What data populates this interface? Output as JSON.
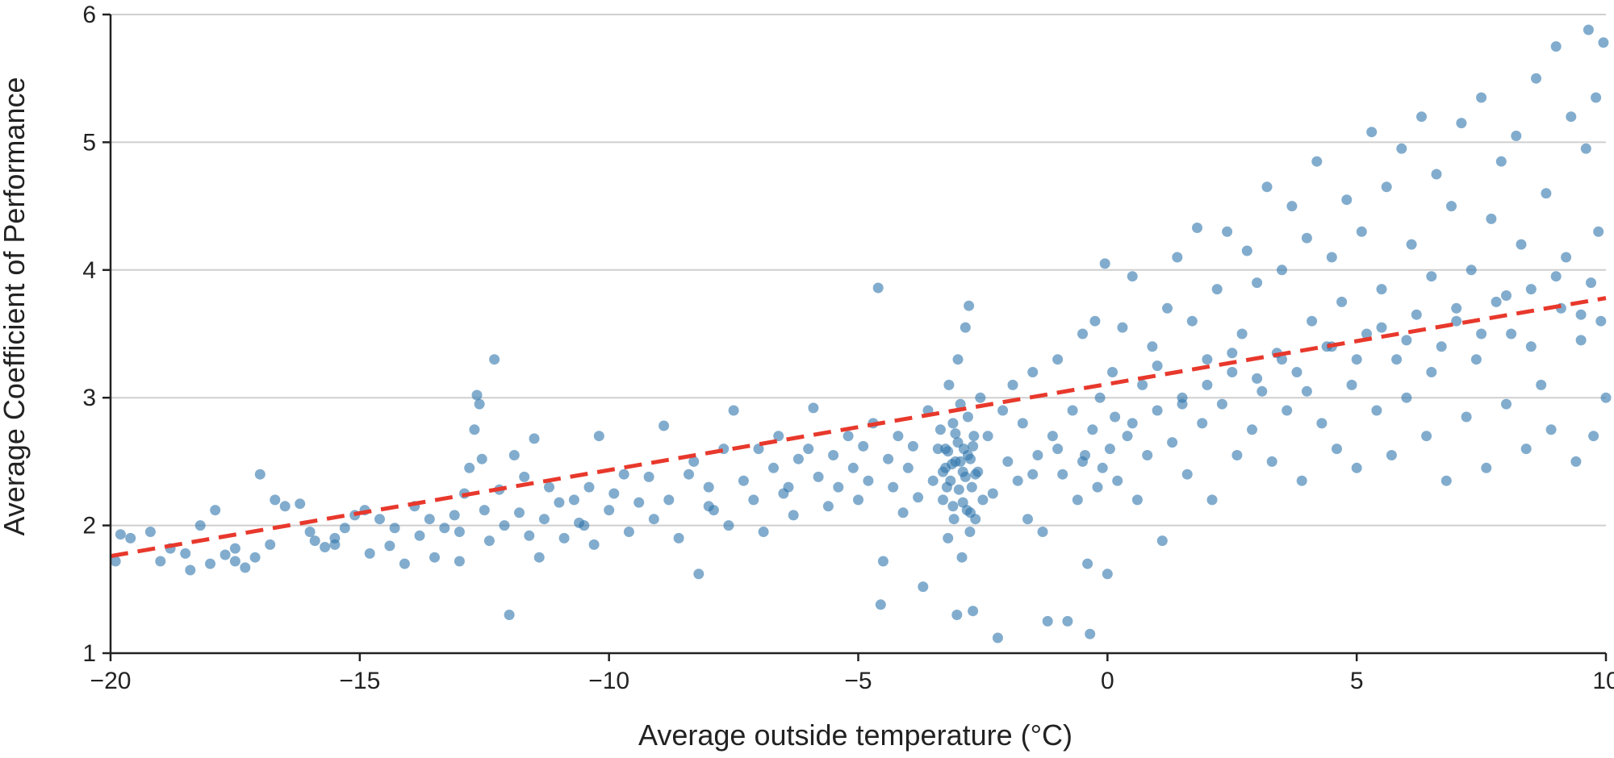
{
  "chart_data": {
    "type": "scatter",
    "title": "",
    "xlabel": "Average outside temperature (°C)",
    "ylabel": "Average Coefficient of Performance",
    "xlim": [
      -20,
      10
    ],
    "ylim": [
      1,
      6
    ],
    "xticks": [
      {
        "value": -20,
        "label": "−20"
      },
      {
        "value": -15,
        "label": "−15"
      },
      {
        "value": -10,
        "label": "−10"
      },
      {
        "value": -5,
        "label": "−5"
      },
      {
        "value": 0,
        "label": "0"
      },
      {
        "value": 5,
        "label": "5"
      },
      {
        "value": 10,
        "label": "10"
      }
    ],
    "yticks": [
      {
        "value": 1,
        "label": "1"
      },
      {
        "value": 2,
        "label": "2"
      },
      {
        "value": 3,
        "label": "3"
      },
      {
        "value": 4,
        "label": "4"
      },
      {
        "value": 5,
        "label": "5"
      },
      {
        "value": 6,
        "label": "6"
      }
    ],
    "grid": "horizontal",
    "legend": "none",
    "colors": {
      "points": "#2e75ab",
      "trend": "#e8382c",
      "grid": "#cfcfcf",
      "axis": "#222222"
    },
    "trend_line": {
      "style": "dashed",
      "points": [
        [
          -20,
          1.76
        ],
        [
          10,
          3.78
        ]
      ]
    },
    "points": [
      [
        -19.9,
        1.72
      ],
      [
        -19.8,
        1.93
      ],
      [
        -19.6,
        1.9
      ],
      [
        -19.2,
        1.95
      ],
      [
        -19.0,
        1.72
      ],
      [
        -18.8,
        1.82
      ],
      [
        -18.5,
        1.78
      ],
      [
        -18.4,
        1.65
      ],
      [
        -18.2,
        2.0
      ],
      [
        -18.0,
        1.7
      ],
      [
        -17.9,
        2.12
      ],
      [
        -17.7,
        1.77
      ],
      [
        -17.5,
        1.72
      ],
      [
        -17.3,
        1.67
      ],
      [
        -17.1,
        1.75
      ],
      [
        -17.0,
        2.4
      ],
      [
        -16.8,
        1.85
      ],
      [
        -16.7,
        2.2
      ],
      [
        -16.5,
        2.15
      ],
      [
        -16.2,
        2.17
      ],
      [
        -16.0,
        1.95
      ],
      [
        -15.9,
        1.88
      ],
      [
        -15.7,
        1.83
      ],
      [
        -15.5,
        1.9
      ],
      [
        -15.3,
        1.98
      ],
      [
        -15.1,
        2.08
      ],
      [
        -14.9,
        2.12
      ],
      [
        -14.8,
        1.78
      ],
      [
        -14.6,
        2.05
      ],
      [
        -14.4,
        1.84
      ],
      [
        -14.3,
        1.98
      ],
      [
        -14.1,
        1.7
      ],
      [
        -13.9,
        2.15
      ],
      [
        -13.8,
        1.92
      ],
      [
        -13.6,
        2.05
      ],
      [
        -13.5,
        1.75
      ],
      [
        -13.3,
        1.98
      ],
      [
        -13.1,
        2.08
      ],
      [
        -13.0,
        1.72
      ],
      [
        -12.9,
        2.25
      ],
      [
        -12.8,
        2.45
      ],
      [
        -12.7,
        2.75
      ],
      [
        -12.65,
        3.02
      ],
      [
        -12.6,
        2.95
      ],
      [
        -12.55,
        2.52
      ],
      [
        -12.5,
        2.12
      ],
      [
        -12.4,
        1.88
      ],
      [
        -12.3,
        3.3
      ],
      [
        -12.2,
        2.28
      ],
      [
        -12.1,
        2.0
      ],
      [
        -12.0,
        1.3
      ],
      [
        -11.9,
        2.55
      ],
      [
        -11.8,
        2.1
      ],
      [
        -11.7,
        2.38
      ],
      [
        -11.6,
        1.92
      ],
      [
        -11.5,
        2.68
      ],
      [
        -11.4,
        1.75
      ],
      [
        -11.3,
        2.05
      ],
      [
        -11.2,
        2.3
      ],
      [
        -11.0,
        2.18
      ],
      [
        -10.9,
        1.9
      ],
      [
        -10.7,
        2.2
      ],
      [
        -10.6,
        2.02
      ],
      [
        -10.4,
        2.3
      ],
      [
        -10.3,
        1.85
      ],
      [
        -10.2,
        2.7
      ],
      [
        -10.0,
        2.12
      ],
      [
        -9.9,
        2.25
      ],
      [
        -9.7,
        2.4
      ],
      [
        -9.6,
        1.95
      ],
      [
        -9.4,
        2.18
      ],
      [
        -9.2,
        2.38
      ],
      [
        -9.1,
        2.05
      ],
      [
        -8.9,
        2.78
      ],
      [
        -8.8,
        2.2
      ],
      [
        -8.6,
        1.9
      ],
      [
        -8.4,
        2.4
      ],
      [
        -8.3,
        2.5
      ],
      [
        -8.2,
        1.62
      ],
      [
        -8.0,
        2.3
      ],
      [
        -7.9,
        2.12
      ],
      [
        -7.7,
        2.6
      ],
      [
        -7.6,
        2.0
      ],
      [
        -7.5,
        2.9
      ],
      [
        -7.3,
        2.35
      ],
      [
        -7.1,
        2.2
      ],
      [
        -7.0,
        2.6
      ],
      [
        -6.9,
        1.95
      ],
      [
        -6.7,
        2.45
      ],
      [
        -6.6,
        2.7
      ],
      [
        -6.4,
        2.3
      ],
      [
        -6.3,
        2.08
      ],
      [
        -6.2,
        2.52
      ],
      [
        -6.0,
        2.6
      ],
      [
        -5.9,
        2.92
      ],
      [
        -5.8,
        2.38
      ],
      [
        -5.6,
        2.15
      ],
      [
        -5.5,
        2.55
      ],
      [
        -5.4,
        2.3
      ],
      [
        -5.2,
        2.7
      ],
      [
        -5.1,
        2.45
      ],
      [
        -5.0,
        2.2
      ],
      [
        -4.9,
        2.62
      ],
      [
        -4.8,
        2.35
      ],
      [
        -4.7,
        2.8
      ],
      [
        -4.6,
        3.86
      ],
      [
        -4.55,
        1.38
      ],
      [
        -4.5,
        1.72
      ],
      [
        -4.4,
        2.52
      ],
      [
        -4.3,
        2.3
      ],
      [
        -4.2,
        2.7
      ],
      [
        -4.1,
        2.1
      ],
      [
        -4.0,
        2.45
      ],
      [
        -3.9,
        2.62
      ],
      [
        -3.8,
        2.22
      ],
      [
        -3.7,
        1.52
      ],
      [
        -3.6,
        2.9
      ],
      [
        -3.5,
        2.35
      ],
      [
        -3.4,
        2.6
      ],
      [
        -3.35,
        2.75
      ],
      [
        -3.3,
        2.2
      ],
      [
        -3.25,
        2.45
      ],
      [
        -3.2,
        1.9
      ],
      [
        -3.2,
        2.58
      ],
      [
        -3.18,
        3.1
      ],
      [
        -3.15,
        2.35
      ],
      [
        -3.1,
        2.8
      ],
      [
        -3.08,
        2.05
      ],
      [
        -3.05,
        2.5
      ],
      [
        -3.02,
        1.3
      ],
      [
        -3.0,
        2.65
      ],
      [
        -3.0,
        3.3
      ],
      [
        -2.98,
        2.28
      ],
      [
        -2.95,
        2.95
      ],
      [
        -2.92,
        1.75
      ],
      [
        -2.9,
        2.42
      ],
      [
        -2.88,
        2.6
      ],
      [
        -2.85,
        3.55
      ],
      [
        -2.82,
        2.12
      ],
      [
        -2.8,
        2.85
      ],
      [
        -2.78,
        3.72
      ],
      [
        -2.76,
        1.95
      ],
      [
        -2.75,
        2.52
      ],
      [
        -2.72,
        2.3
      ],
      [
        -2.7,
        1.33
      ],
      [
        -2.68,
        2.7
      ],
      [
        -2.65,
        2.05
      ],
      [
        -2.6,
        2.42
      ],
      [
        -2.55,
        3.0
      ],
      [
        -2.5,
        2.2
      ],
      [
        -3.3,
        2.42
      ],
      [
        -3.25,
        2.6
      ],
      [
        -3.22,
        2.3
      ],
      [
        -3.12,
        2.48
      ],
      [
        -3.1,
        2.15
      ],
      [
        -3.05,
        2.72
      ],
      [
        -2.95,
        2.5
      ],
      [
        -2.9,
        2.18
      ],
      [
        -2.85,
        2.38
      ],
      [
        -2.8,
        2.55
      ],
      [
        -2.75,
        2.1
      ],
      [
        -2.7,
        2.62
      ],
      [
        -2.65,
        2.4
      ],
      [
        -2.4,
        2.7
      ],
      [
        -2.3,
        2.25
      ],
      [
        -2.2,
        1.12
      ],
      [
        -2.1,
        2.9
      ],
      [
        -2.0,
        2.5
      ],
      [
        -1.9,
        3.1
      ],
      [
        -1.8,
        2.35
      ],
      [
        -1.7,
        2.8
      ],
      [
        -1.6,
        2.05
      ],
      [
        -1.5,
        3.2
      ],
      [
        -1.4,
        2.55
      ],
      [
        -1.3,
        1.95
      ],
      [
        -1.2,
        1.25
      ],
      [
        -1.1,
        2.7
      ],
      [
        -1.0,
        3.3
      ],
      [
        -0.9,
        2.4
      ],
      [
        -0.8,
        1.25
      ],
      [
        -0.7,
        2.9
      ],
      [
        -0.6,
        2.2
      ],
      [
        -0.5,
        3.5
      ],
      [
        -0.45,
        2.55
      ],
      [
        -0.4,
        1.7
      ],
      [
        -0.35,
        1.15
      ],
      [
        -0.3,
        2.75
      ],
      [
        -0.25,
        3.6
      ],
      [
        -0.2,
        2.3
      ],
      [
        -0.15,
        3.0
      ],
      [
        -0.1,
        2.45
      ],
      [
        -0.05,
        4.05
      ],
      [
        0.0,
        1.62
      ],
      [
        0.05,
        2.6
      ],
      [
        0.1,
        3.2
      ],
      [
        0.15,
        2.85
      ],
      [
        0.2,
        2.35
      ],
      [
        0.3,
        3.55
      ],
      [
        0.4,
        2.7
      ],
      [
        0.5,
        3.95
      ],
      [
        0.6,
        2.2
      ],
      [
        0.7,
        3.1
      ],
      [
        0.8,
        2.55
      ],
      [
        0.9,
        3.4
      ],
      [
        1.0,
        2.9
      ],
      [
        1.1,
        1.88
      ],
      [
        1.2,
        3.7
      ],
      [
        1.3,
        2.65
      ],
      [
        1.4,
        4.1
      ],
      [
        1.5,
        3.0
      ],
      [
        1.6,
        2.4
      ],
      [
        1.7,
        3.6
      ],
      [
        1.8,
        4.33
      ],
      [
        1.9,
        2.8
      ],
      [
        2.0,
        3.3
      ],
      [
        2.1,
        2.2
      ],
      [
        2.2,
        3.85
      ],
      [
        2.3,
        2.95
      ],
      [
        2.4,
        4.3
      ],
      [
        2.5,
        3.2
      ],
      [
        2.6,
        2.55
      ],
      [
        2.7,
        3.5
      ],
      [
        2.8,
        4.15
      ],
      [
        2.9,
        2.75
      ],
      [
        3.0,
        3.9
      ],
      [
        3.1,
        3.05
      ],
      [
        3.2,
        4.65
      ],
      [
        3.3,
        2.5
      ],
      [
        3.4,
        3.35
      ],
      [
        3.5,
        4.0
      ],
      [
        3.6,
        2.9
      ],
      [
        3.7,
        4.5
      ],
      [
        3.8,
        3.2
      ],
      [
        3.9,
        2.35
      ],
      [
        4.0,
        4.25
      ],
      [
        4.1,
        3.6
      ],
      [
        4.2,
        4.85
      ],
      [
        4.3,
        2.8
      ],
      [
        4.4,
        3.4
      ],
      [
        4.5,
        4.1
      ],
      [
        4.6,
        2.6
      ],
      [
        4.7,
        3.75
      ],
      [
        4.8,
        4.55
      ],
      [
        4.9,
        3.1
      ],
      [
        5.0,
        2.45
      ],
      [
        5.1,
        4.3
      ],
      [
        5.2,
        3.5
      ],
      [
        5.3,
        5.08
      ],
      [
        5.4,
        2.9
      ],
      [
        5.5,
        3.85
      ],
      [
        5.6,
        4.65
      ],
      [
        5.7,
        2.55
      ],
      [
        5.8,
        3.3
      ],
      [
        5.9,
        4.95
      ],
      [
        6.0,
        3.0
      ],
      [
        6.1,
        4.2
      ],
      [
        6.2,
        3.65
      ],
      [
        6.3,
        5.2
      ],
      [
        6.4,
        2.7
      ],
      [
        6.5,
        3.95
      ],
      [
        6.6,
        4.75
      ],
      [
        6.7,
        3.4
      ],
      [
        6.8,
        2.35
      ],
      [
        6.9,
        4.5
      ],
      [
        7.0,
        3.6
      ],
      [
        7.1,
        5.15
      ],
      [
        7.2,
        2.85
      ],
      [
        7.3,
        4.0
      ],
      [
        7.4,
        3.3
      ],
      [
        7.5,
        5.35
      ],
      [
        7.6,
        2.45
      ],
      [
        7.7,
        4.4
      ],
      [
        7.8,
        3.75
      ],
      [
        7.9,
        4.85
      ],
      [
        8.0,
        2.95
      ],
      [
        8.1,
        3.5
      ],
      [
        8.2,
        5.05
      ],
      [
        8.3,
        4.2
      ],
      [
        8.4,
        2.6
      ],
      [
        8.5,
        3.85
      ],
      [
        8.6,
        5.5
      ],
      [
        8.7,
        3.1
      ],
      [
        8.8,
        4.6
      ],
      [
        8.9,
        2.75
      ],
      [
        9.0,
        5.75
      ],
      [
        9.1,
        3.7
      ],
      [
        9.2,
        4.1
      ],
      [
        9.3,
        5.2
      ],
      [
        9.4,
        2.5
      ],
      [
        9.5,
        3.45
      ],
      [
        9.6,
        4.95
      ],
      [
        9.65,
        5.88
      ],
      [
        9.7,
        3.9
      ],
      [
        9.75,
        2.7
      ],
      [
        9.8,
        5.35
      ],
      [
        9.85,
        4.3
      ],
      [
        9.9,
        3.6
      ],
      [
        9.95,
        5.78
      ],
      [
        10.0,
        3.0
      ],
      [
        1.0,
        3.25
      ],
      [
        1.5,
        2.95
      ],
      [
        2.0,
        3.1
      ],
      [
        2.5,
        3.35
      ],
      [
        3.0,
        3.15
      ],
      [
        3.5,
        3.3
      ],
      [
        4.0,
        3.05
      ],
      [
        4.5,
        3.4
      ],
      [
        5.0,
        3.3
      ],
      [
        5.5,
        3.55
      ],
      [
        6.0,
        3.45
      ],
      [
        6.5,
        3.2
      ],
      [
        7.0,
        3.7
      ],
      [
        7.5,
        3.5
      ],
      [
        8.0,
        3.8
      ],
      [
        8.5,
        3.4
      ],
      [
        9.0,
        3.95
      ],
      [
        9.5,
        3.65
      ],
      [
        -1.5,
        2.4
      ],
      [
        -1.0,
        2.6
      ],
      [
        -0.5,
        2.5
      ],
      [
        0.5,
        2.8
      ],
      [
        -6.5,
        2.25
      ],
      [
        -8.0,
        2.15
      ],
      [
        -10.5,
        2.0
      ],
      [
        -13.0,
        1.95
      ],
      [
        -15.5,
        1.85
      ],
      [
        -17.5,
        1.82
      ]
    ]
  }
}
